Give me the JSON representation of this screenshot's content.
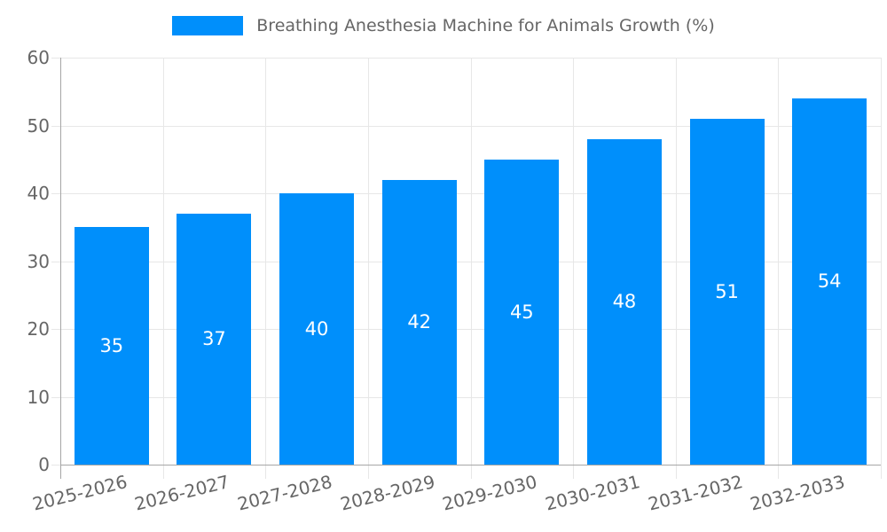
{
  "legend": {
    "series_label": "Breathing Anesthesia Machine for Animals Growth (%)"
  },
  "chart_data": {
    "type": "bar",
    "title": "Breathing Anesthesia Machine for Animals Growth (%)",
    "categories": [
      "2025-2026",
      "2026-2027",
      "2027-2028",
      "2028-2029",
      "2029-2030",
      "2030-2031",
      "2031-2032",
      "2032-2033"
    ],
    "values": [
      35,
      37,
      40,
      42,
      45,
      48,
      51,
      54
    ],
    "value_labels": [
      "35",
      "37",
      "40",
      "42",
      "45",
      "48",
      "51",
      "54"
    ],
    "xlabel": "",
    "ylabel": "",
    "ylim": [
      0,
      60
    ],
    "yticks": [
      0,
      10,
      20,
      30,
      40,
      50,
      60
    ],
    "grid": true,
    "legend_position": "top",
    "colors": {
      "bar": "#008FFB",
      "value_label": "#ffffff",
      "axis_label": "#666666",
      "gridline": "#e7e7e7",
      "axis_line": "#a6a6a6"
    }
  }
}
